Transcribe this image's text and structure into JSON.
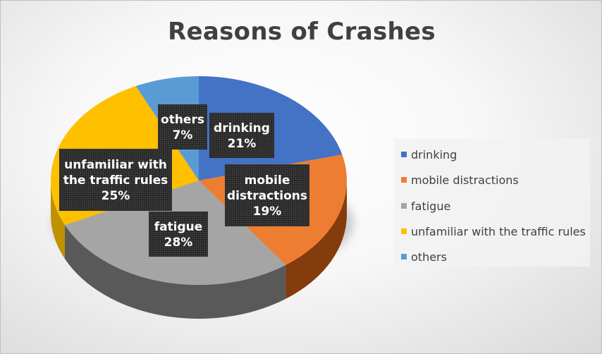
{
  "chart_data": {
    "type": "pie",
    "title": "Reasons of Crashes",
    "slices": [
      {
        "label": "drinking",
        "value": 21,
        "value_label": "21%",
        "label_lines": [
          "drinking"
        ],
        "color": "#4472C4",
        "side_color": "#2F5597"
      },
      {
        "label": "mobile distractions",
        "value": 19,
        "value_label": "19%",
        "label_lines": [
          "mobile",
          "distractions"
        ],
        "color": "#ED7D31",
        "side_color": "#843C0C"
      },
      {
        "label": "fatigue",
        "value": 28,
        "value_label": "28%",
        "label_lines": [
          "fatigue"
        ],
        "color": "#A5A5A5",
        "side_color": "#595959"
      },
      {
        "label": "unfamiliar with the traffic rules",
        "value": 25,
        "value_label": "25%",
        "label_lines": [
          "unfamiliar with",
          "the traffic rules"
        ],
        "color": "#FFC000",
        "side_color": "#BF9000"
      },
      {
        "label": "others",
        "value": 7,
        "value_label": "7%",
        "label_lines": [
          "others"
        ],
        "color": "#5B9BD5",
        "side_color": "#2E75B6"
      }
    ],
    "legend_position": "right",
    "three_d": true,
    "data_label_style": "dark boxes"
  }
}
